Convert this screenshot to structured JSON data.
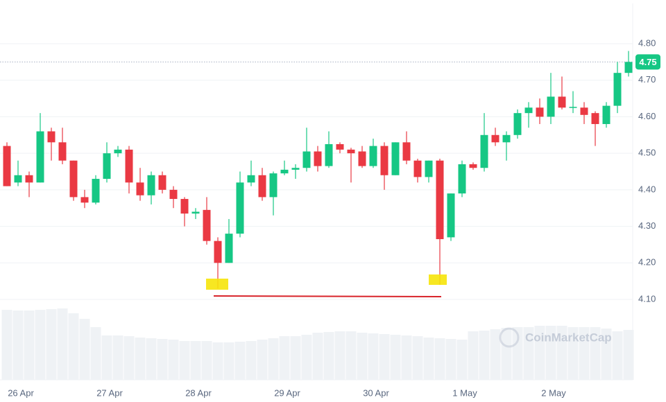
{
  "chart_data": {
    "type": "candlestick",
    "categories": [
      null,
      "26 Apr",
      null,
      null,
      null,
      null,
      null,
      null,
      null,
      "27 Apr",
      null,
      null,
      null,
      null,
      null,
      null,
      null,
      "28 Apr",
      null,
      null,
      null,
      null,
      null,
      null,
      null,
      "29 Apr",
      null,
      null,
      null,
      null,
      null,
      null,
      null,
      "30 Apr",
      null,
      null,
      null,
      null,
      null,
      null,
      null,
      "1 May",
      null,
      null,
      null,
      null,
      null,
      null,
      null,
      "2 May",
      null,
      null,
      null,
      null,
      null,
      null,
      null
    ],
    "open": [
      4.52,
      4.42,
      4.44,
      4.42,
      4.56,
      4.53,
      4.48,
      4.38,
      4.365,
      4.43,
      4.5,
      4.51,
      4.42,
      4.385,
      4.44,
      4.4,
      4.375,
      4.335,
      4.345,
      4.26,
      4.2,
      4.28,
      4.42,
      4.44,
      4.38,
      4.445,
      4.455,
      4.46,
      4.505,
      4.465,
      4.525,
      4.51,
      4.505,
      4.465,
      4.52,
      4.44,
      4.53,
      4.48,
      4.435,
      4.48,
      4.27,
      4.39,
      4.47,
      4.46,
      4.55,
      4.53,
      4.55,
      4.61,
      4.625,
      4.6,
      4.655,
      4.625,
      4.625,
      4.61,
      4.58,
      4.63,
      4.72
    ],
    "high": [
      4.53,
      4.48,
      4.45,
      4.61,
      4.57,
      4.57,
      4.48,
      4.4,
      4.44,
      4.53,
      4.52,
      4.52,
      4.46,
      4.45,
      4.45,
      4.41,
      4.38,
      4.35,
      4.38,
      4.27,
      4.32,
      4.45,
      4.48,
      4.46,
      4.45,
      4.48,
      4.47,
      4.57,
      4.52,
      4.56,
      4.53,
      4.515,
      4.52,
      4.54,
      4.53,
      4.53,
      4.56,
      4.485,
      4.48,
      4.485,
      4.39,
      4.48,
      4.475,
      4.61,
      4.57,
      4.56,
      4.62,
      4.64,
      4.65,
      4.72,
      4.71,
      4.67,
      4.64,
      4.615,
      4.64,
      4.75,
      4.78
    ],
    "low": [
      4.41,
      4.41,
      4.38,
      4.42,
      4.48,
      4.47,
      4.37,
      4.35,
      4.36,
      4.42,
      4.49,
      4.39,
      4.37,
      4.36,
      4.39,
      4.35,
      4.3,
      4.32,
      4.25,
      4.13,
      4.2,
      4.27,
      4.41,
      4.37,
      4.33,
      4.44,
      4.43,
      4.45,
      4.45,
      4.46,
      4.5,
      4.42,
      4.46,
      4.46,
      4.4,
      4.44,
      4.47,
      4.42,
      4.42,
      4.14,
      4.26,
      4.38,
      4.455,
      4.45,
      4.52,
      4.48,
      4.54,
      4.57,
      4.58,
      4.58,
      4.62,
      4.61,
      4.58,
      4.52,
      4.57,
      4.61,
      4.71
    ],
    "close": [
      4.41,
      4.44,
      4.42,
      4.56,
      4.53,
      4.48,
      4.38,
      4.365,
      4.43,
      4.5,
      4.51,
      4.42,
      4.385,
      4.44,
      4.4,
      4.375,
      4.335,
      4.34,
      4.26,
      4.2,
      4.28,
      4.42,
      4.44,
      4.38,
      4.445,
      4.455,
      4.46,
      4.505,
      4.465,
      4.525,
      4.51,
      4.5,
      4.465,
      4.52,
      4.44,
      4.53,
      4.48,
      4.435,
      4.48,
      4.265,
      4.39,
      4.47,
      4.46,
      4.55,
      4.53,
      4.55,
      4.61,
      4.625,
      4.6,
      4.655,
      4.625,
      4.627,
      4.605,
      4.58,
      4.63,
      4.72,
      4.75
    ],
    "volume": [
      101,
      100,
      100,
      101,
      102,
      103,
      96,
      88,
      76,
      64,
      64,
      63,
      61,
      60,
      59,
      58,
      56,
      56,
      56,
      54,
      54,
      55,
      56,
      58,
      60,
      63,
      63,
      65,
      68,
      69,
      70,
      70,
      68,
      67,
      66,
      65,
      64,
      63,
      61,
      60,
      59,
      58,
      70,
      71,
      73,
      75,
      76,
      76,
      78,
      78,
      78,
      76,
      76,
      76,
      74,
      70,
      72
    ],
    "up_color": "#16c784",
    "down_color": "#ea3943",
    "volume_color": "#eff2f5",
    "ylim": [
      3.88,
      4.91
    ],
    "yticks": [
      {
        "value": 4.1,
        "label": "4.10"
      },
      {
        "value": 4.2,
        "label": "4.20"
      },
      {
        "value": 4.3,
        "label": "4.30"
      },
      {
        "value": 4.4,
        "label": "4.40"
      },
      {
        "value": 4.5,
        "label": "4.50"
      },
      {
        "value": 4.6,
        "label": "4.60"
      },
      {
        "value": 4.7,
        "label": "4.70"
      },
      {
        "value": 4.8,
        "label": "4.80"
      }
    ],
    "current_price": {
      "value": 4.75,
      "label": "4.75"
    },
    "grid": true,
    "watermark": "CoinMarketCap"
  }
}
